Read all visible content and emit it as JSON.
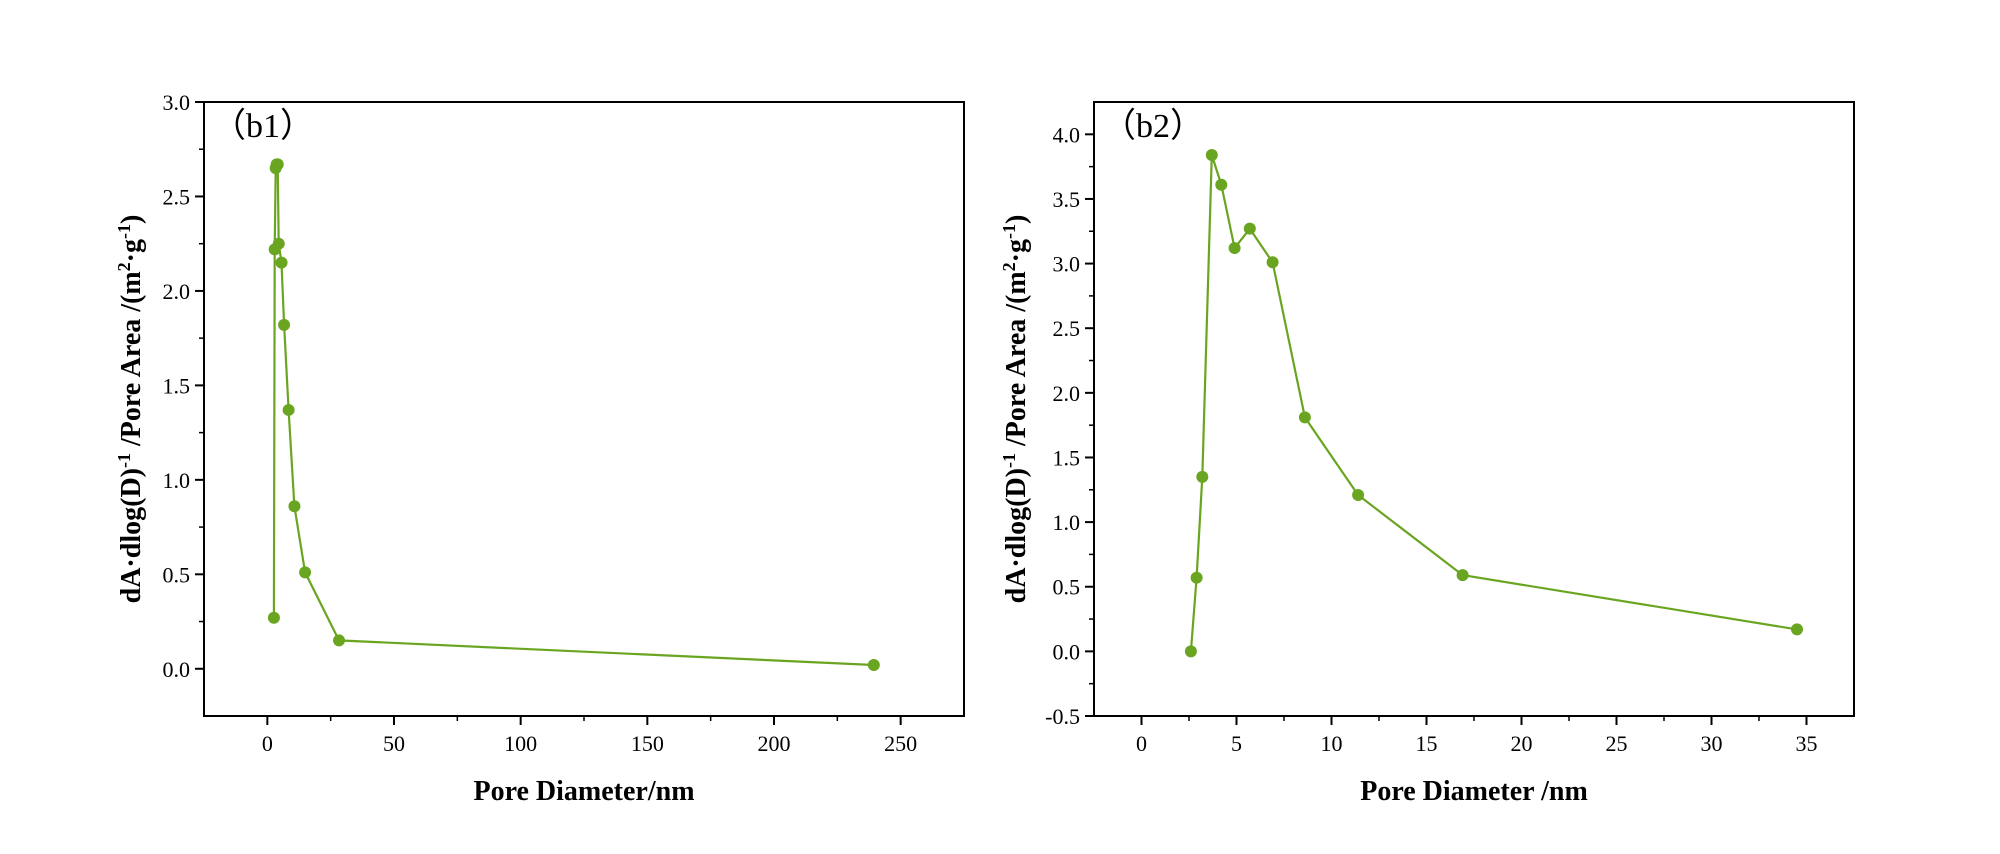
{
  "colors": {
    "series": "#6aa521",
    "axis": "#000000",
    "background": "#ffffff"
  },
  "chart_data": [
    {
      "type": "line",
      "panel_label": "（b1）",
      "xlabel": "Pore Diameter/nm",
      "ylabel_parts": [
        "dA·dlog(D)",
        "-1",
        " /Pore Area /(m",
        "2",
        "·g",
        "-1",
        ")"
      ],
      "xlim": [
        -25,
        275
      ],
      "ylim": [
        -0.25,
        3.0
      ],
      "xticks": [
        0,
        50,
        100,
        150,
        200,
        250
      ],
      "xtick_labels": [
        "0",
        "50",
        "100",
        "150",
        "200",
        "250"
      ],
      "yticks": [
        0.0,
        0.5,
        1.0,
        1.5,
        2.0,
        2.5,
        3.0
      ],
      "ytick_labels": [
        "0.0",
        "0.5",
        "1.0",
        "1.5",
        "2.0",
        "2.5",
        "3.0"
      ],
      "grid": false,
      "series": [
        {
          "x": [
            2.6,
            2.9,
            3.3,
            3.7,
            4.1,
            4.5,
            5.6,
            6.6,
            8.4,
            10.7,
            14.9,
            28.3,
            239.4
          ],
          "y": [
            0.27,
            2.22,
            2.65,
            2.67,
            2.67,
            2.25,
            2.15,
            1.82,
            1.37,
            0.86,
            0.51,
            0.15,
            0.02
          ],
          "marker": "circle"
        }
      ]
    },
    {
      "type": "line",
      "panel_label": "（b2）",
      "xlabel": "Pore Diameter /nm",
      "ylabel_parts": [
        "dA·dlog(D)",
        "-1",
        " /Pore Area /(m",
        "2",
        "·g",
        "-1",
        ")"
      ],
      "xlim": [
        -2.5,
        37.5
      ],
      "ylim": [
        -0.5,
        4.25
      ],
      "xticks": [
        0,
        5,
        10,
        15,
        20,
        25,
        30,
        35
      ],
      "xtick_labels": [
        "0",
        "5",
        "10",
        "15",
        "20",
        "25",
        "30",
        "35"
      ],
      "yticks": [
        -0.5,
        0.0,
        0.5,
        1.0,
        1.5,
        2.0,
        2.5,
        3.0,
        3.5,
        4.0
      ],
      "ytick_labels": [
        "-0.5",
        "0.0",
        "0.5",
        "1.0",
        "1.5",
        "2.0",
        "2.5",
        "3.0",
        "3.5",
        "4.0"
      ],
      "grid": false,
      "series": [
        {
          "x": [
            2.6,
            2.9,
            3.2,
            3.7,
            4.2,
            4.9,
            5.7,
            6.9,
            8.6,
            11.4,
            16.9,
            34.5
          ],
          "y": [
            0.0,
            0.57,
            1.35,
            3.84,
            3.61,
            3.12,
            3.27,
            3.01,
            1.81,
            1.21,
            0.59,
            0.17
          ],
          "marker": "circle"
        }
      ]
    }
  ]
}
